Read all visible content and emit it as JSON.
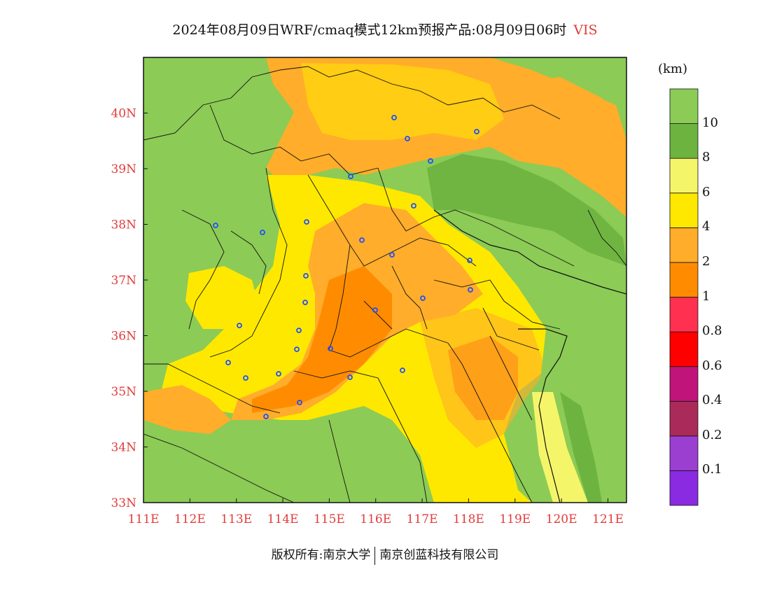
{
  "title": {
    "main": "2024年08月09日WRF/cmaq模式12km预报产品:08月09日06时",
    "variable": "VIS"
  },
  "map": {
    "lon_ticks": [
      "111E",
      "112E",
      "113E",
      "114E",
      "115E",
      "116E",
      "117E",
      "118E",
      "119E",
      "120E",
      "121E"
    ],
    "lat_ticks": [
      "33N",
      "34N",
      "35N",
      "36N",
      "37N",
      "38N",
      "39N",
      "40N"
    ],
    "extent": {
      "lon_min": 111,
      "lon_max": 121.4,
      "lat_min": 33,
      "lat_max": 41
    }
  },
  "colorbar": {
    "unit": "(km)",
    "colors": [
      "#8a2be2",
      "#9b3fd1",
      "#aa2a5a",
      "#c0147a",
      "#ff0000",
      "#ff3050",
      "#ff8c00",
      "#ffad2a",
      "#ffe800",
      "#f5f56a",
      "#6db33f",
      "#8ccb55"
    ],
    "labels": [
      "0.1",
      "0.2",
      "0.4",
      "0.6",
      "0.8",
      "1",
      "2",
      "4",
      "6",
      "8",
      "10"
    ]
  },
  "footer": {
    "left": "版权所有:南京大学",
    "right": "南京创蓝科技有限公司"
  }
}
